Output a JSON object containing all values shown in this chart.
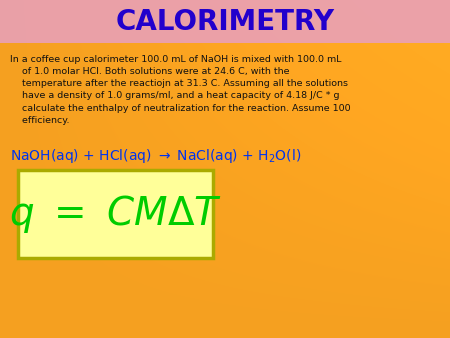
{
  "background_color": "#F5A020",
  "title": "CALORIMETRY",
  "title_color": "#2200CC",
  "title_bg_color": "#E8A0C0",
  "body_text_line1": "In a coffee cup calorimeter 100.0 mL of NaOH is mixed with 100.0 mL",
  "body_text_line2": "    of 1.0 molar HCl. Both solutions were at 24.6 C, with the",
  "body_text_line3": "    temperature after the reactiojn at 31.3 C. Assuming all the solutions",
  "body_text_line4": "    have a density of 1.0 grams/ml, and a heat capacity of 4.18 J/C * g",
  "body_text_line5": "    calculate the enthalpy of neutralization for the reaction. Assume 100",
  "body_text_line6": "    efficiency.",
  "body_text_color": "#111111",
  "reaction_color": "#0033EE",
  "formula_color": "#00CC00",
  "formula_bg_color": "#FFFF99",
  "formula_border_color": "#AAAA00"
}
